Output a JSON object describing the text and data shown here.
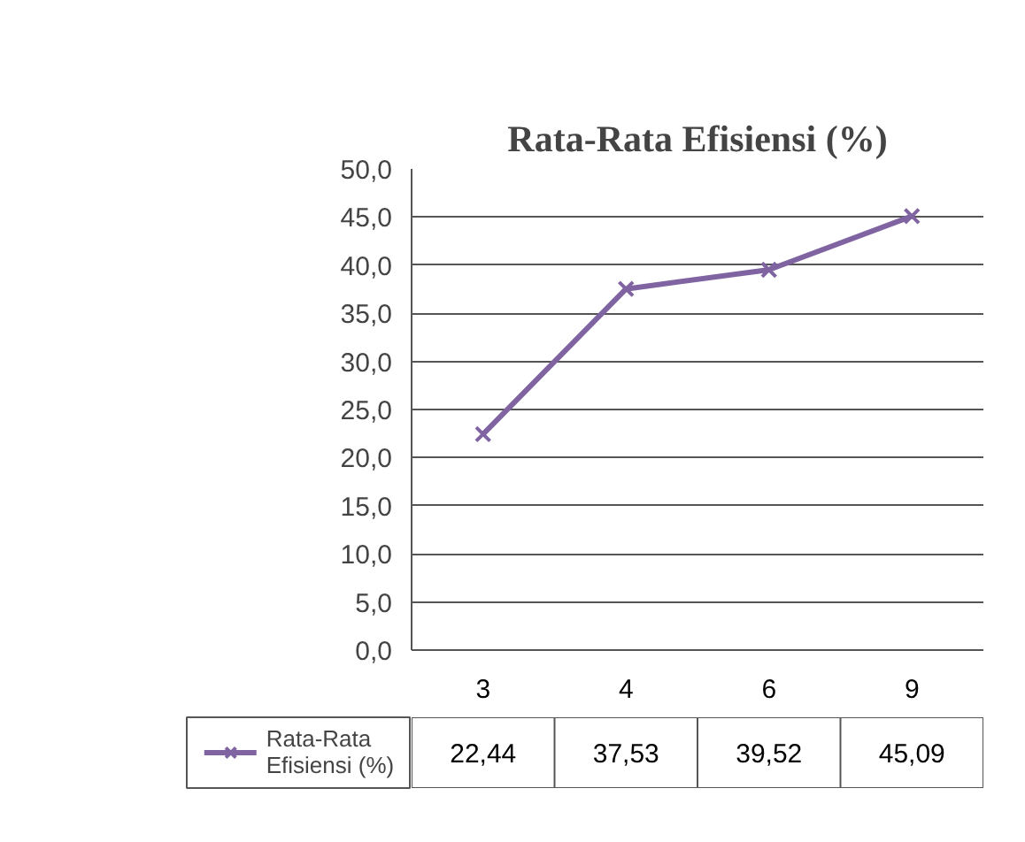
{
  "chart_data": {
    "type": "line",
    "title": "Rata-Rata Efisiensi (%)",
    "categories": [
      "3",
      "4",
      "6",
      "9"
    ],
    "series": [
      {
        "name": "Rata-Rata Efisiensi (%)",
        "color": "#8064a2",
        "values": [
          22.44,
          37.53,
          39.52,
          45.09
        ],
        "value_labels": [
          "22,44",
          "37,53",
          "39,52",
          "45,09"
        ]
      }
    ],
    "ylim": [
      0,
      50
    ],
    "yticks": [
      {
        "value": 0,
        "label": "0,0"
      },
      {
        "value": 5,
        "label": "5,0"
      },
      {
        "value": 10,
        "label": "10,0"
      },
      {
        "value": 15,
        "label": "15,0"
      },
      {
        "value": 20,
        "label": "20,0"
      },
      {
        "value": 25,
        "label": "25,0"
      },
      {
        "value": 30,
        "label": "30,0"
      },
      {
        "value": 35,
        "label": "35,0"
      },
      {
        "value": 40,
        "label": "40,0"
      },
      {
        "value": 45,
        "label": "45,0"
      },
      {
        "value": 50,
        "label": "50,0"
      }
    ],
    "grid": "y",
    "legend": "bottom",
    "marker": "cross",
    "line_style": "solid"
  }
}
